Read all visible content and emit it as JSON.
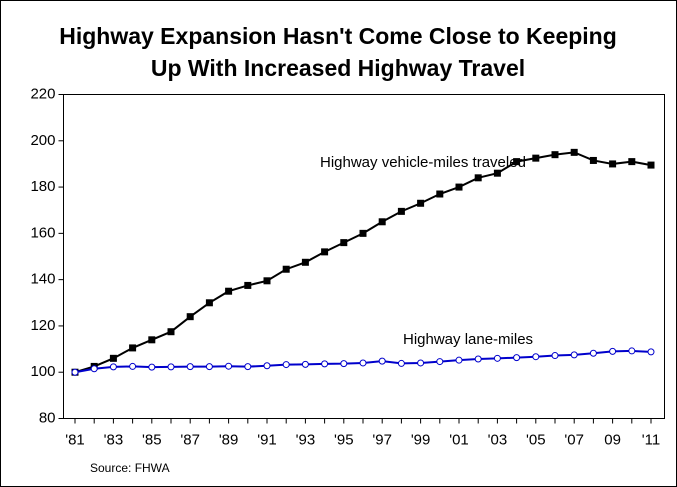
{
  "chart_data": {
    "type": "line",
    "title": [
      "Highway Expansion Hasn't Come Close to Keeping",
      "Up With Increased Highway Travel"
    ],
    "source": "Source: FHWA",
    "categories": [
      "'81",
      null,
      "'83",
      null,
      "'85",
      null,
      "'87",
      null,
      "'89",
      null,
      "'91",
      null,
      "'93",
      null,
      "'95",
      null,
      "'97",
      null,
      "'99",
      null,
      "'01",
      null,
      "'03",
      null,
      "'05",
      null,
      "'07",
      null,
      "09",
      null,
      "'11"
    ],
    "series": [
      {
        "name": "Highway vehicle-miles traveled",
        "color": "#000000",
        "marker": "square",
        "values": [
          100,
          102.5,
          106,
          110.5,
          114,
          117.5,
          124,
          130,
          135,
          137.5,
          139.5,
          144.5,
          147.5,
          152,
          156,
          160,
          165,
          169.5,
          173,
          177,
          180,
          184,
          186,
          191,
          192.5,
          194,
          195,
          191.5,
          190,
          191,
          189.5
        ]
      },
      {
        "name": "Highway lane-miles",
        "color": "#0000cc",
        "marker": "circle",
        "values": [
          100,
          101.5,
          102.3,
          102.5,
          102.2,
          102.3,
          102.4,
          102.4,
          102.6,
          102.4,
          102.8,
          103.3,
          103.4,
          103.6,
          103.7,
          104,
          104.8,
          103.8,
          104,
          104.6,
          105.2,
          105.7,
          106,
          106.3,
          106.7,
          107.2,
          107.5,
          108.2,
          109,
          109.2,
          108.8
        ]
      }
    ],
    "ylim": [
      80,
      220
    ],
    "yticks": [
      80,
      100,
      120,
      140,
      160,
      180,
      200,
      220
    ],
    "grid": false
  }
}
